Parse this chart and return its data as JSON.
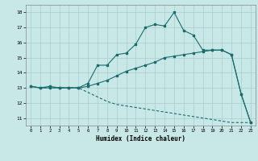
{
  "xlabel": "Humidex (Indice chaleur)",
  "xlim": [
    -0.5,
    23.5
  ],
  "ylim": [
    10.5,
    18.5
  ],
  "xticks": [
    0,
    1,
    2,
    3,
    4,
    5,
    6,
    7,
    8,
    9,
    10,
    11,
    12,
    13,
    14,
    15,
    16,
    17,
    18,
    19,
    20,
    21,
    22,
    23
  ],
  "yticks": [
    11,
    12,
    13,
    14,
    15,
    16,
    17,
    18
  ],
  "bg_color": "#c8e8e8",
  "line_color": "#1a6b6b",
  "grid_color": "#a8cccc",
  "line1_x": [
    0,
    1,
    2,
    3,
    4,
    5,
    6,
    7,
    8,
    9,
    10,
    11,
    12,
    13,
    14,
    15,
    16,
    17,
    18,
    19,
    20,
    21,
    22,
    23
  ],
  "line1_y": [
    13.1,
    13.0,
    13.1,
    13.0,
    13.0,
    13.0,
    13.3,
    14.5,
    14.5,
    15.2,
    15.3,
    15.9,
    17.0,
    17.2,
    17.1,
    18.0,
    16.8,
    16.5,
    15.5,
    15.5,
    15.5,
    15.2,
    12.6,
    10.7
  ],
  "line2_x": [
    0,
    1,
    2,
    3,
    4,
    5,
    6,
    7,
    8,
    9,
    10,
    11,
    12,
    13,
    14,
    15,
    16,
    17,
    18,
    19,
    20,
    21,
    22,
    23
  ],
  "line2_y": [
    13.1,
    13.0,
    13.0,
    13.0,
    13.0,
    13.0,
    13.1,
    13.3,
    13.5,
    13.8,
    14.1,
    14.3,
    14.5,
    14.7,
    15.0,
    15.1,
    15.2,
    15.3,
    15.4,
    15.5,
    15.5,
    15.2,
    12.6,
    10.7
  ],
  "line3_x": [
    0,
    1,
    2,
    3,
    4,
    5,
    6,
    7,
    8,
    9,
    10,
    11,
    12,
    13,
    14,
    15,
    16,
    17,
    18,
    19,
    20,
    21,
    22,
    23
  ],
  "line3_y": [
    13.1,
    13.0,
    13.0,
    13.0,
    13.0,
    13.0,
    12.7,
    12.4,
    12.1,
    11.9,
    11.8,
    11.7,
    11.6,
    11.5,
    11.4,
    11.3,
    11.2,
    11.1,
    11.0,
    10.9,
    10.8,
    10.7,
    10.7,
    10.7
  ]
}
